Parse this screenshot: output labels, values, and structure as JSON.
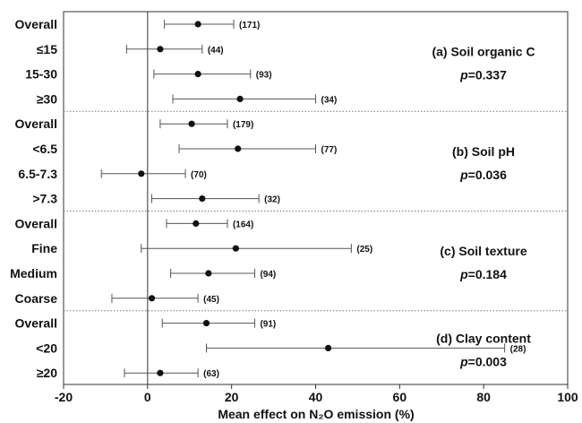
{
  "chart_data": {
    "type": "scatter",
    "style": "forest-plot",
    "xlabel": "Mean effect on N₂O emission (%)",
    "xlim": [
      -20,
      100
    ],
    "xticks": [
      "-20",
      "0",
      "20",
      "40",
      "60",
      "80",
      "100"
    ],
    "reference_line_x": 0,
    "errorbars": "horizontal",
    "groups": [
      {
        "title": "(a) Soil organic C",
        "p_label": "p",
        "p_value": "=0.337",
        "rows": [
          {
            "label": "Overall",
            "mean": 12,
            "low": 4,
            "high": 20.5,
            "n": "(171)"
          },
          {
            "label": "≤15",
            "mean": 3,
            "low": -5,
            "high": 13,
            "n": "(44)"
          },
          {
            "label": "15-30",
            "mean": 12,
            "low": 1.5,
            "high": 24.5,
            "n": "(93)"
          },
          {
            "label": "≥30",
            "mean": 22,
            "low": 6,
            "high": 40,
            "n": "(34)"
          }
        ]
      },
      {
        "title": "(b) Soil pH",
        "p_label": "p",
        "p_value": "=0.036",
        "rows": [
          {
            "label": "Overall",
            "mean": 10.5,
            "low": 3,
            "high": 19,
            "n": "(179)"
          },
          {
            "label": "<6.5",
            "mean": 21.5,
            "low": 7.5,
            "high": 40,
            "n": "(77)"
          },
          {
            "label": "6.5-7.3",
            "mean": -1.5,
            "low": -11,
            "high": 9,
            "n": "(70)"
          },
          {
            "label": ">7.3",
            "mean": 13,
            "low": 1,
            "high": 26.5,
            "n": "(32)"
          }
        ]
      },
      {
        "title": "(c) Soil texture",
        "p_label": "p",
        "p_value": "=0.184",
        "rows": [
          {
            "label": "Overall",
            "mean": 11.5,
            "low": 4.5,
            "high": 19,
            "n": "(164)"
          },
          {
            "label": "Fine",
            "mean": 21,
            "low": -1.5,
            "high": 48.5,
            "n": "(25)"
          },
          {
            "label": "Medium",
            "mean": 14.5,
            "low": 5.5,
            "high": 25.5,
            "n": "(94)"
          },
          {
            "label": "Coarse",
            "mean": 1,
            "low": -8.5,
            "high": 12,
            "n": "(45)"
          }
        ]
      },
      {
        "title": "(d) Clay content",
        "p_label": "p",
        "p_value": "=0.003",
        "rows": [
          {
            "label": "Overall",
            "mean": 14,
            "low": 3.5,
            "high": 25.5,
            "n": "(91)"
          },
          {
            "label": "<20",
            "mean": 43,
            "low": 14,
            "high": 85,
            "n": "(28)"
          },
          {
            "label": "≥20",
            "mean": 3,
            "low": -5.5,
            "high": 12,
            "n": "(63)"
          }
        ]
      }
    ]
  }
}
